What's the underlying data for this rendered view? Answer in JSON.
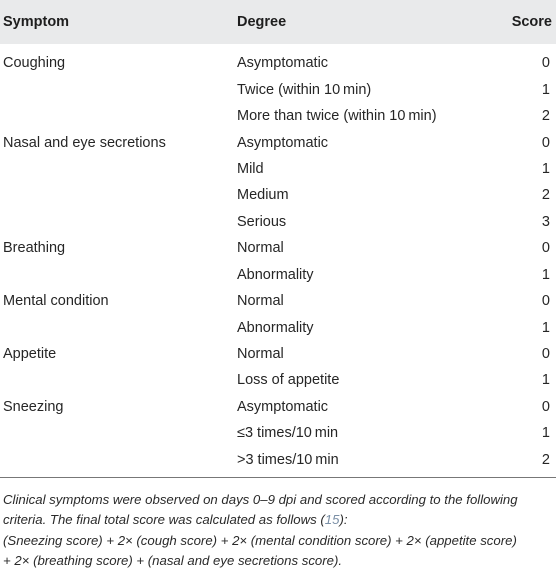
{
  "table": {
    "headers": {
      "symptom": "Symptom",
      "degree": "Degree",
      "score": "Score"
    },
    "rows": [
      {
        "symptom": "Coughing",
        "degree": "Asymptomatic",
        "score": "0"
      },
      {
        "symptom": "",
        "degree": "Twice (within 10 min)",
        "score": "1"
      },
      {
        "symptom": "",
        "degree": "More than twice (within 10 min)",
        "score": "2"
      },
      {
        "symptom": "Nasal and eye secretions",
        "degree": "Asymptomatic",
        "score": "0"
      },
      {
        "symptom": "",
        "degree": "Mild",
        "score": "1"
      },
      {
        "symptom": "",
        "degree": "Medium",
        "score": "2"
      },
      {
        "symptom": "",
        "degree": "Serious",
        "score": "3"
      },
      {
        "symptom": "Breathing",
        "degree": "Normal",
        "score": "0"
      },
      {
        "symptom": "",
        "degree": "Abnormality",
        "score": "1"
      },
      {
        "symptom": "Mental condition",
        "degree": "Normal",
        "score": "0"
      },
      {
        "symptom": "",
        "degree": "Abnormality",
        "score": "1"
      },
      {
        "symptom": "Appetite",
        "degree": "Normal",
        "score": "0"
      },
      {
        "symptom": "",
        "degree": "Loss of appetite",
        "score": "1"
      },
      {
        "symptom": "Sneezing",
        "degree": "Asymptomatic",
        "score": "0"
      },
      {
        "symptom": "",
        "degree": "≤3 times/10 min",
        "score": "1"
      },
      {
        "symptom": "",
        "degree": ">3 times/10 min",
        "score": "2"
      }
    ]
  },
  "footnote": {
    "line1": "Clinical symptoms were observed on days 0–9 dpi and scored according to the following",
    "line2_before_ref": "criteria. The final total score was calculated as follows (",
    "line2_ref": "15",
    "line2_after_ref": "):",
    "line3": "(Sneezing score) + 2× (cough score) + 2× (mental condition score) + 2× (appetite score)",
    "line4": "+ 2× (breathing score) + (nasal and eye secretions score)."
  }
}
